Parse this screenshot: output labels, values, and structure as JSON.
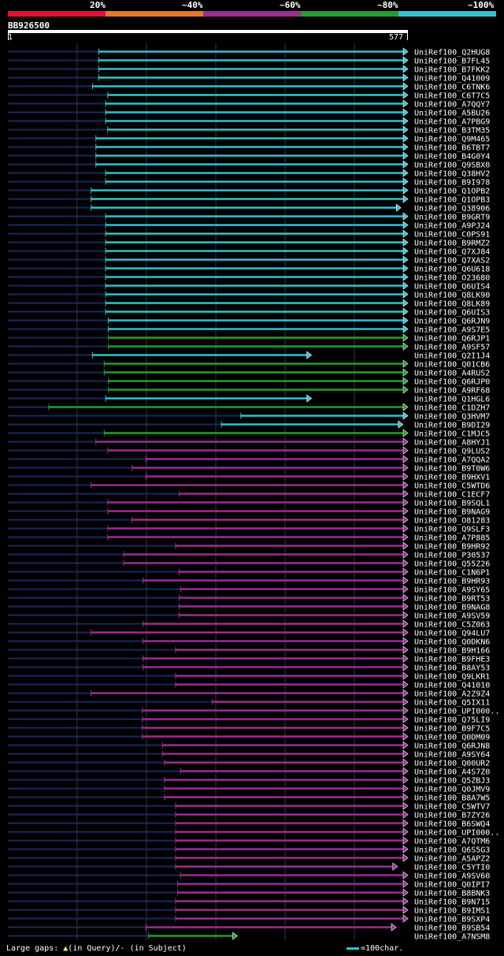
{
  "chart_data": {
    "type": "alignment-overview",
    "query": {
      "name": "BB926500",
      "start": 1,
      "end": 577
    },
    "legend": [
      {
        "label": "20%",
        "color": "#e8102e"
      },
      {
        "label": "~40%",
        "color": "#e87722"
      },
      {
        "label": "~60%",
        "color": "#9c2d92"
      },
      {
        "label": "~80%",
        "color": "#22a02a"
      },
      {
        "label": "~100%",
        "color": "#2ec4d0"
      }
    ],
    "colors": {
      "cyan": "#2ec4d0",
      "green": "#22a02a",
      "purple": "#9c2d92",
      "unaligned": "#1a2a5e"
    },
    "hits": [
      {
        "id": "UniRef100_Q2HUG8",
        "start": 132,
        "end": 577,
        "color": "cyan"
      },
      {
        "id": "UniRef100_B7FL45",
        "start": 132,
        "end": 577,
        "color": "cyan"
      },
      {
        "id": "UniRef100_B7FKK2",
        "start": 132,
        "end": 577,
        "color": "cyan"
      },
      {
        "id": "UniRef100_Q41009",
        "start": 132,
        "end": 577,
        "color": "cyan"
      },
      {
        "id": "UniRef100_C6TNK6",
        "start": 123,
        "end": 577,
        "color": "cyan"
      },
      {
        "id": "UniRef100_C6T7C5",
        "start": 145,
        "end": 577,
        "color": "cyan"
      },
      {
        "id": "UniRef100_A7QQY7",
        "start": 142,
        "end": 577,
        "color": "cyan"
      },
      {
        "id": "UniRef100_A5BU26",
        "start": 142,
        "end": 577,
        "color": "cyan"
      },
      {
        "id": "UniRef100_A7PBG9",
        "start": 142,
        "end": 577,
        "color": "cyan"
      },
      {
        "id": "UniRef100_B3TM35",
        "start": 145,
        "end": 577,
        "color": "cyan"
      },
      {
        "id": "UniRef100_Q9M465",
        "start": 128,
        "end": 577,
        "color": "cyan"
      },
      {
        "id": "UniRef100_B6TBT7",
        "start": 128,
        "end": 577,
        "color": "cyan"
      },
      {
        "id": "UniRef100_B4G0Y4",
        "start": 128,
        "end": 577,
        "color": "cyan"
      },
      {
        "id": "UniRef100_Q9SBX0",
        "start": 128,
        "end": 577,
        "color": "cyan"
      },
      {
        "id": "UniRef100_Q38HV2",
        "start": 142,
        "end": 577,
        "color": "cyan"
      },
      {
        "id": "UniRef100_B9I978",
        "start": 142,
        "end": 577,
        "color": "cyan"
      },
      {
        "id": "UniRef100_Q1OPB2",
        "start": 121,
        "end": 577,
        "color": "cyan"
      },
      {
        "id": "UniRef100_Q1OPB3",
        "start": 121,
        "end": 577,
        "color": "cyan"
      },
      {
        "id": "UniRef100_Q38906",
        "start": 121,
        "end": 567,
        "color": "cyan"
      },
      {
        "id": "UniRef100_B9GRT9",
        "start": 142,
        "end": 577,
        "color": "cyan"
      },
      {
        "id": "UniRef100_A9PJ24",
        "start": 142,
        "end": 577,
        "color": "cyan"
      },
      {
        "id": "UniRef100_C0PS91",
        "start": 142,
        "end": 577,
        "color": "cyan"
      },
      {
        "id": "UniRef100_B9RMZ2",
        "start": 142,
        "end": 577,
        "color": "cyan"
      },
      {
        "id": "UniRef100_Q7XJ84",
        "start": 142,
        "end": 577,
        "color": "cyan"
      },
      {
        "id": "UniRef100_Q7XAS2",
        "start": 142,
        "end": 577,
        "color": "cyan"
      },
      {
        "id": "UniRef100_Q6U618",
        "start": 142,
        "end": 577,
        "color": "cyan"
      },
      {
        "id": "UniRef100_O23680",
        "start": 142,
        "end": 577,
        "color": "cyan"
      },
      {
        "id": "UniRef100_Q6UIS4",
        "start": 142,
        "end": 577,
        "color": "cyan"
      },
      {
        "id": "UniRef100_Q8LK90",
        "start": 142,
        "end": 577,
        "color": "cyan"
      },
      {
        "id": "UniRef100_Q8LK89",
        "start": 142,
        "end": 577,
        "color": "cyan"
      },
      {
        "id": "UniRef100_Q6UIS3",
        "start": 142,
        "end": 577,
        "color": "cyan"
      },
      {
        "id": "UniRef100_Q6RJN9",
        "start": 146,
        "end": 577,
        "color": "cyan"
      },
      {
        "id": "UniRef100_A9S7E5",
        "start": 146,
        "end": 577,
        "color": "cyan"
      },
      {
        "id": "UniRef100_Q6RJP1",
        "start": 146,
        "end": 577,
        "color": "green"
      },
      {
        "id": "UniRef100_A9SF57",
        "start": 146,
        "end": 577,
        "color": "green"
      },
      {
        "id": "UniRef100_Q2I1J4",
        "start": 123,
        "end": 438,
        "color": "cyan"
      },
      {
        "id": "UniRef100_Q01CB6",
        "start": 140,
        "end": 577,
        "color": "green"
      },
      {
        "id": "UniRef100_A4RUS2",
        "start": 140,
        "end": 577,
        "color": "green"
      },
      {
        "id": "UniRef100_Q6RJP0",
        "start": 146,
        "end": 577,
        "color": "green"
      },
      {
        "id": "UniRef100_A9RF68",
        "start": 146,
        "end": 577,
        "color": "green"
      },
      {
        "id": "UniRef100_Q1HGL6",
        "start": 142,
        "end": 438,
        "color": "cyan"
      },
      {
        "id": "UniRef100_C1DZH7",
        "start": 60,
        "end": 577,
        "color": "green"
      },
      {
        "id": "UniRef100_Q3HVM7",
        "start": 337,
        "end": 577,
        "color": "cyan"
      },
      {
        "id": "UniRef100_B9DI29",
        "start": 309,
        "end": 570,
        "color": "cyan"
      },
      {
        "id": "UniRef100_C1MJC5",
        "start": 140,
        "end": 577,
        "color": "green"
      },
      {
        "id": "UniRef100_A8HYJ1",
        "start": 128,
        "end": 577,
        "color": "purple"
      },
      {
        "id": "UniRef100_Q9LUS2",
        "start": 145,
        "end": 577,
        "color": "purple"
      },
      {
        "id": "UniRef100_A7QQA2",
        "start": 200,
        "end": 577,
        "color": "purple"
      },
      {
        "id": "UniRef100_B9T0W6",
        "start": 180,
        "end": 577,
        "color": "purple"
      },
      {
        "id": "UniRef100_B9HXV1",
        "start": 200,
        "end": 577,
        "color": "purple"
      },
      {
        "id": "UniRef100_C5WTD6",
        "start": 121,
        "end": 577,
        "color": "purple"
      },
      {
        "id": "UniRef100_C1ECF7",
        "start": 248,
        "end": 577,
        "color": "purple"
      },
      {
        "id": "UniRef100_B9SQL1",
        "start": 145,
        "end": 577,
        "color": "purple"
      },
      {
        "id": "UniRef100_B9NAG9",
        "start": 145,
        "end": 577,
        "color": "purple"
      },
      {
        "id": "UniRef100_O81283",
        "start": 180,
        "end": 577,
        "color": "purple"
      },
      {
        "id": "UniRef100_Q9SLF3",
        "start": 145,
        "end": 577,
        "color": "purple"
      },
      {
        "id": "UniRef100_A7P885",
        "start": 145,
        "end": 577,
        "color": "purple"
      },
      {
        "id": "UniRef100_B9HR92",
        "start": 243,
        "end": 577,
        "color": "purple"
      },
      {
        "id": "UniRef100_P30537",
        "start": 168,
        "end": 577,
        "color": "purple"
      },
      {
        "id": "UniRef100_Q55Z26",
        "start": 168,
        "end": 577,
        "color": "purple"
      },
      {
        "id": "UniRef100_C1N6P1",
        "start": 248,
        "end": 577,
        "color": "purple"
      },
      {
        "id": "UniRef100_B9HR93",
        "start": 196,
        "end": 577,
        "color": "purple"
      },
      {
        "id": "UniRef100_A9SY65",
        "start": 250,
        "end": 577,
        "color": "purple"
      },
      {
        "id": "UniRef100_B9RT53",
        "start": 248,
        "end": 577,
        "color": "purple"
      },
      {
        "id": "UniRef100_B9NAG8",
        "start": 248,
        "end": 577,
        "color": "purple"
      },
      {
        "id": "UniRef100_A9SV59",
        "start": 248,
        "end": 577,
        "color": "purple"
      },
      {
        "id": "UniRef100_C5Z063",
        "start": 196,
        "end": 577,
        "color": "purple"
      },
      {
        "id": "UniRef100_Q94LU7",
        "start": 121,
        "end": 577,
        "color": "purple"
      },
      {
        "id": "UniRef100_Q0DKN6",
        "start": 196,
        "end": 577,
        "color": "purple"
      },
      {
        "id": "UniRef100_B9H166",
        "start": 243,
        "end": 577,
        "color": "purple"
      },
      {
        "id": "UniRef100_B9FHE3",
        "start": 196,
        "end": 577,
        "color": "purple"
      },
      {
        "id": "UniRef100_B8AY53",
        "start": 196,
        "end": 577,
        "color": "purple"
      },
      {
        "id": "UniRef100_Q9LKR1",
        "start": 243,
        "end": 577,
        "color": "purple"
      },
      {
        "id": "UniRef100_Q41010",
        "start": 243,
        "end": 577,
        "color": "purple"
      },
      {
        "id": "UniRef100_A2Z9Z4",
        "start": 121,
        "end": 577,
        "color": "purple"
      },
      {
        "id": "UniRef100_Q5IX11",
        "start": 296,
        "end": 577,
        "color": "purple"
      },
      {
        "id": "UniRef100_UPI000..",
        "start": 195,
        "end": 577,
        "color": "purple"
      },
      {
        "id": "UniRef100_Q75LI9",
        "start": 195,
        "end": 577,
        "color": "purple"
      },
      {
        "id": "UniRef100_B9F7C5",
        "start": 195,
        "end": 577,
        "color": "purple"
      },
      {
        "id": "UniRef100_Q0DM09",
        "start": 195,
        "end": 577,
        "color": "purple"
      },
      {
        "id": "UniRef100_Q6RJN8",
        "start": 224,
        "end": 577,
        "color": "purple"
      },
      {
        "id": "UniRef100_A9SY64",
        "start": 224,
        "end": 577,
        "color": "purple"
      },
      {
        "id": "UniRef100_Q00UR2",
        "start": 227,
        "end": 577,
        "color": "purple"
      },
      {
        "id": "UniRef100_A4S7Z0",
        "start": 250,
        "end": 577,
        "color": "purple"
      },
      {
        "id": "UniRef100_Q5ZBJ3",
        "start": 227,
        "end": 577,
        "color": "purple"
      },
      {
        "id": "UniRef100_Q0JMV9",
        "start": 227,
        "end": 577,
        "color": "purple"
      },
      {
        "id": "UniRef100_B8A7W5",
        "start": 227,
        "end": 577,
        "color": "purple"
      },
      {
        "id": "UniRef100_C5WTV7",
        "start": 243,
        "end": 577,
        "color": "purple"
      },
      {
        "id": "UniRef100_B7ZY26",
        "start": 243,
        "end": 577,
        "color": "purple"
      },
      {
        "id": "UniRef100_B6SWQ4",
        "start": 243,
        "end": 577,
        "color": "purple"
      },
      {
        "id": "UniRef100_UPI000..",
        "start": 243,
        "end": 577,
        "color": "purple"
      },
      {
        "id": "UniRef100_A7QTM6",
        "start": 243,
        "end": 577,
        "color": "purple"
      },
      {
        "id": "UniRef100_Q6S5G3",
        "start": 243,
        "end": 577,
        "color": "purple"
      },
      {
        "id": "UniRef100_A5APZ2",
        "start": 243,
        "end": 577,
        "color": "purple"
      },
      {
        "id": "UniRef100_C5YTI0",
        "start": 243,
        "end": 562,
        "color": "purple"
      },
      {
        "id": "UniRef100_A9SV60",
        "start": 250,
        "end": 577,
        "color": "purple"
      },
      {
        "id": "UniRef100_Q0IPI7",
        "start": 246,
        "end": 577,
        "color": "purple"
      },
      {
        "id": "UniRef100_B8BNK3",
        "start": 246,
        "end": 577,
        "color": "purple"
      },
      {
        "id": "UniRef100_B9N715",
        "start": 243,
        "end": 577,
        "color": "purple"
      },
      {
        "id": "UniRef100_B9IMS1",
        "start": 243,
        "end": 577,
        "color": "purple"
      },
      {
        "id": "UniRef100_B9SXP4",
        "start": 243,
        "end": 577,
        "color": "purple"
      },
      {
        "id": "UniRef100_B9SB54",
        "start": 200,
        "end": 560,
        "color": "purple"
      },
      {
        "id": "UniRef100_A7NSM8",
        "start": 204,
        "end": 331,
        "color": "green"
      }
    ],
    "footer": {
      "gaps_label": "Large gaps:",
      "query_gap_label": "(in Query)/",
      "subject_gap_label": "- (in Subject)",
      "scale_label": "=100char."
    }
  }
}
